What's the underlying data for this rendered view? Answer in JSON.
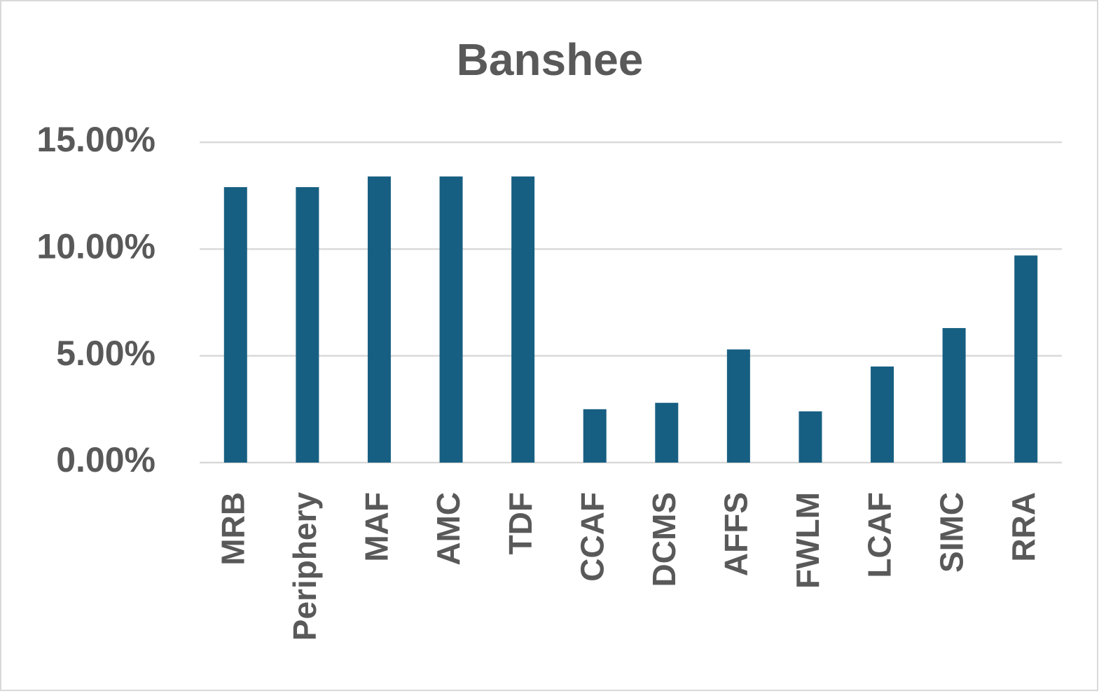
{
  "chart_data": {
    "type": "bar",
    "title": "Banshee",
    "categories": [
      "MRB",
      "Periphery",
      "MAF",
      "AMC",
      "TDF",
      "CCAF",
      "DCMS",
      "AFFS",
      "FWLM",
      "LCAF",
      "SIMC",
      "RRA"
    ],
    "values": [
      12.9,
      12.9,
      13.4,
      13.4,
      13.4,
      2.5,
      2.8,
      5.3,
      2.4,
      4.5,
      6.3,
      9.7
    ],
    "color": "#175f82",
    "ylim": [
      0,
      15
    ],
    "yticks": [
      {
        "value": 0,
        "label": "0.00%"
      },
      {
        "value": 5,
        "label": "5.00%"
      },
      {
        "value": 10,
        "label": "10.00%"
      },
      {
        "value": 15,
        "label": "15.00%"
      }
    ],
    "grid": true
  }
}
